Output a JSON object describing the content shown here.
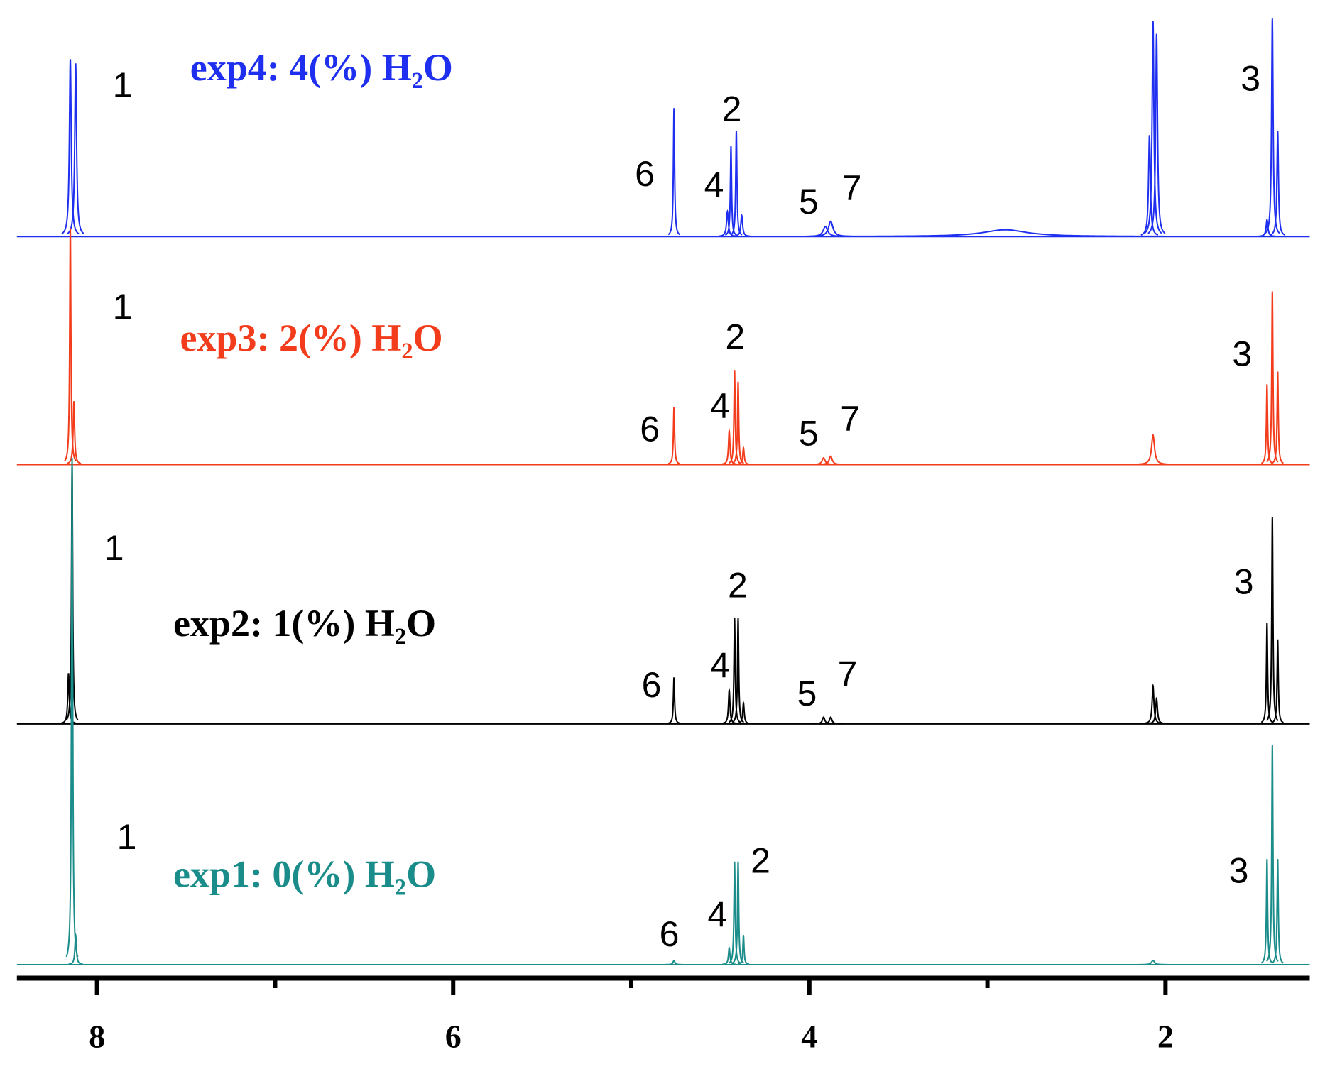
{
  "chart_data": {
    "type": "nmr-stack",
    "xlim": [
      8.45,
      1.19
    ],
    "xticks": [
      8,
      6,
      4,
      2
    ],
    "xminorticks": [
      7,
      5,
      3
    ],
    "series": [
      {
        "name": "exp4: 4(%) H₂O",
        "color": "#1f2ff0",
        "labels": [
          "1",
          "6",
          "4",
          "2",
          "5",
          "7",
          "3"
        ],
        "ppm": [
          8.15,
          8.12,
          4.76,
          4.46,
          4.44,
          4.41,
          4.38,
          3.91,
          3.88,
          2.9,
          2.09,
          2.07,
          2.05,
          1.43,
          1.4,
          1.37
        ],
        "height": [
          210,
          205,
          152,
          30,
          107,
          125,
          25,
          12,
          18,
          8,
          120,
          255,
          240,
          20,
          258,
          125
        ],
        "width": [
          0.006,
          0.006,
          0.004,
          0.006,
          0.004,
          0.004,
          0.006,
          0.015,
          0.015,
          0.15,
          0.006,
          0.006,
          0.006,
          0.006,
          0.005,
          0.005
        ]
      },
      {
        "name": "exp3: 2(%) H₂O",
        "color": "#f23c1c",
        "labels": [
          "1",
          "6",
          "4",
          "2",
          "5",
          "7",
          "3"
        ],
        "ppm": [
          8.15,
          8.13,
          4.76,
          4.45,
          4.42,
          4.4,
          4.37,
          3.92,
          3.88,
          2.07,
          1.43,
          1.4,
          1.37
        ],
        "height": [
          280,
          75,
          68,
          40,
          112,
          98,
          20,
          8,
          10,
          35,
          95,
          205,
          110
        ],
        "width": [
          0.004,
          0.005,
          0.004,
          0.005,
          0.004,
          0.004,
          0.005,
          0.01,
          0.01,
          0.01,
          0.004,
          0.004,
          0.004
        ]
      },
      {
        "name": "exp2: 1(%) H₂O",
        "color": "#000000",
        "labels": [
          "1",
          "6",
          "4",
          "2",
          "5",
          "7",
          "3"
        ],
        "ppm": [
          8.16,
          8.14,
          4.76,
          4.45,
          4.42,
          4.4,
          4.37,
          3.92,
          3.88,
          2.07,
          2.05,
          1.43,
          1.4,
          1.37
        ],
        "height": [
          60,
          305,
          55,
          40,
          125,
          125,
          25,
          8,
          8,
          45,
          30,
          120,
          245,
          100
        ],
        "width": [
          0.005,
          0.004,
          0.004,
          0.005,
          0.004,
          0.004,
          0.005,
          0.008,
          0.008,
          0.006,
          0.006,
          0.004,
          0.004,
          0.004
        ]
      },
      {
        "name": "exp1: 0(%) H₂O",
        "color": "#1a8c8a",
        "labels": [
          "1",
          "6",
          "4",
          "2",
          "3"
        ],
        "ppm": [
          8.14,
          8.12,
          4.76,
          4.45,
          4.42,
          4.4,
          4.37,
          2.07,
          1.43,
          1.4,
          1.37
        ],
        "height": [
          600,
          35,
          5,
          20,
          122,
          122,
          35,
          5,
          125,
          260,
          125
        ],
        "width": [
          0.004,
          0.005,
          0.006,
          0.005,
          0.004,
          0.004,
          0.004,
          0.01,
          0.004,
          0.004,
          0.004
        ]
      }
    ]
  }
}
